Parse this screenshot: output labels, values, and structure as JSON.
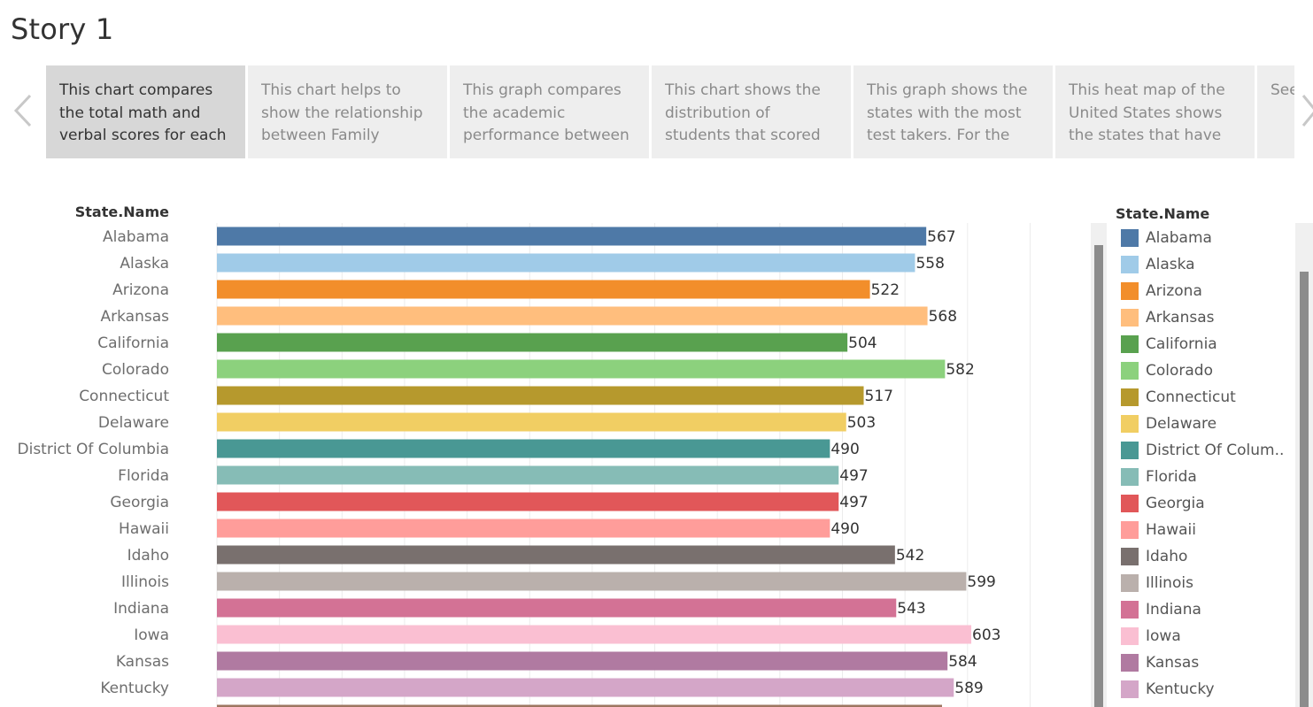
{
  "story": {
    "title": "Story 1"
  },
  "captions": [
    "This chart compares the total math and verbal scores for each",
    "This chart helps to show the relationship between Family",
    "This graph compares the academic performance between",
    "This chart shows the distribution of students that scored",
    "This graph shows the states with the most test takers. For the",
    "This heat map of the United States shows the states that have",
    "See gra to e"
  ],
  "icons": {
    "prev": "chevron-left-icon",
    "next": "chevron-right-icon"
  },
  "chart_data": {
    "type": "bar",
    "orientation": "horizontal",
    "y_header": "State.Name",
    "categories": [
      "Alabama",
      "Alaska",
      "Arizona",
      "Arkansas",
      "California",
      "Colorado",
      "Connecticut",
      "Delaware",
      "District Of Columbia",
      "Florida",
      "Georgia",
      "Hawaii",
      "Idaho",
      "Illinois",
      "Indiana",
      "Iowa",
      "Kansas",
      "Kentucky"
    ],
    "values": [
      567,
      558,
      522,
      568,
      504,
      582,
      517,
      503,
      490,
      497,
      497,
      490,
      542,
      599,
      543,
      603,
      584,
      589
    ],
    "colors": [
      "#4e79a7",
      "#a0cbe8",
      "#f28e2b",
      "#ffbe7d",
      "#59a14f",
      "#8cd17d",
      "#b6992d",
      "#f1ce63",
      "#499894",
      "#86bcb6",
      "#e15759",
      "#ff9d9a",
      "#79706e",
      "#bab0ac",
      "#d37295",
      "#fabfd2",
      "#b07aa1",
      "#d4a6c8"
    ],
    "xlim": [
      0,
      650
    ],
    "grid": true
  },
  "legend": {
    "title": "State.Name",
    "items": [
      "Alabama",
      "Alaska",
      "Arizona",
      "Arkansas",
      "California",
      "Colorado",
      "Connecticut",
      "Delaware",
      "District Of Colum..",
      "Florida",
      "Georgia",
      "Hawaii",
      "Idaho",
      "Illinois",
      "Indiana",
      "Iowa",
      "Kansas",
      "Kentucky"
    ]
  }
}
